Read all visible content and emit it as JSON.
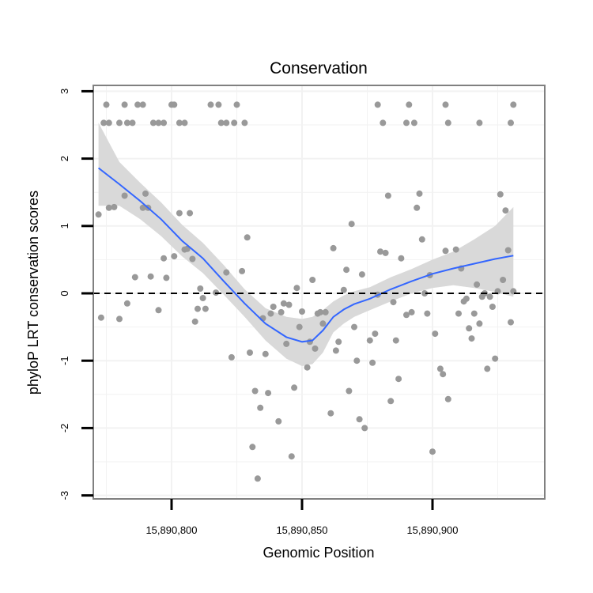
{
  "chart_data": {
    "type": "scatter",
    "title": "Conservation",
    "xlabel": "Genomic Position",
    "ylabel": "phyloP LRT conservation scores",
    "xlim": [
      15890770,
      15890940
    ],
    "ylim": [
      -3.05,
      3.1
    ],
    "x_ticks": [
      {
        "value": 15890800,
        "label": "15,890,800"
      },
      {
        "value": 15890850,
        "label": "15,890,850"
      },
      {
        "value": 15890900,
        "label": "15,890,900"
      }
    ],
    "y_ticks": [
      {
        "value": 3,
        "label": "3"
      },
      {
        "value": 2,
        "label": "2"
      },
      {
        "value": 1,
        "label": "1"
      },
      {
        "value": 0,
        "label": "0"
      },
      {
        "value": -1,
        "label": "-1"
      },
      {
        "value": -2,
        "label": "-2"
      },
      {
        "value": -3,
        "label": "-3"
      }
    ],
    "reference_line": {
      "y": 0,
      "style": "dashed",
      "color": "#000000"
    },
    "grid": true,
    "colors": {
      "points": "#999999",
      "smooth_line": "#3366ff",
      "ribbon": "#d9d9d9",
      "panel_border": "#808080",
      "grid": "#f2f2f2"
    },
    "points": [
      [
        15890775,
        2.8
      ],
      [
        15890774,
        2.53
      ],
      [
        15890776,
        2.53
      ],
      [
        15890780,
        2.53
      ],
      [
        15890783,
        2.53
      ],
      [
        15890785,
        2.53
      ],
      [
        15890782,
        2.8
      ],
      [
        15890787,
        2.8
      ],
      [
        15890789,
        2.8
      ],
      [
        15890793,
        2.53
      ],
      [
        15890795,
        2.53
      ],
      [
        15890797,
        2.53
      ],
      [
        15890800,
        2.8
      ],
      [
        15890801,
        2.8
      ],
      [
        15890803,
        2.53
      ],
      [
        15890805,
        2.53
      ],
      [
        15890815,
        2.8
      ],
      [
        15890818,
        2.8
      ],
      [
        15890819,
        2.53
      ],
      [
        15890821,
        2.53
      ],
      [
        15890825,
        2.8
      ],
      [
        15890824,
        2.53
      ],
      [
        15890828,
        2.53
      ],
      [
        15890879,
        2.8
      ],
      [
        15890881,
        2.53
      ],
      [
        15890890,
        2.53
      ],
      [
        15890891,
        2.8
      ],
      [
        15890893,
        2.53
      ],
      [
        15890905,
        2.8
      ],
      [
        15890906,
        2.53
      ],
      [
        15890918,
        2.53
      ],
      [
        15890930,
        2.53
      ],
      [
        15890931,
        2.8
      ],
      [
        15890772,
        1.17
      ],
      [
        15890773,
        -0.36
      ],
      [
        15890776,
        1.27
      ],
      [
        15890778,
        1.28
      ],
      [
        15890780,
        -0.38
      ],
      [
        15890782,
        1.45
      ],
      [
        15890783,
        -0.15
      ],
      [
        15890786,
        0.24
      ],
      [
        15890789,
        1.27
      ],
      [
        15890790,
        1.48
      ],
      [
        15890791,
        1.27
      ],
      [
        15890792,
        0.25
      ],
      [
        15890795,
        -0.25
      ],
      [
        15890797,
        0.52
      ],
      [
        15890798,
        0.23
      ],
      [
        15890801,
        0.55
      ],
      [
        15890803,
        1.19
      ],
      [
        15890805,
        0.65
      ],
      [
        15890806,
        0.66
      ],
      [
        15890807,
        1.19
      ],
      [
        15890808,
        0.51
      ],
      [
        15890809,
        -0.42
      ],
      [
        15890810,
        -0.23
      ],
      [
        15890811,
        0.07
      ],
      [
        15890812,
        -0.07
      ],
      [
        15890813,
        -0.23
      ],
      [
        15890817,
        0.01
      ],
      [
        15890821,
        0.31
      ],
      [
        15890823,
        -0.95
      ],
      [
        15890827,
        0.33
      ],
      [
        15890829,
        0.83
      ],
      [
        15890830,
        -0.88
      ],
      [
        15890831,
        -2.28
      ],
      [
        15890832,
        -1.45
      ],
      [
        15890833,
        -2.75
      ],
      [
        15890834,
        -1.7
      ],
      [
        15890835,
        -0.37
      ],
      [
        15890836,
        -0.9
      ],
      [
        15890837,
        -1.48
      ],
      [
        15890838,
        -0.3
      ],
      [
        15890839,
        -0.2
      ],
      [
        15890841,
        -1.9
      ],
      [
        15890842,
        -0.28
      ],
      [
        15890843,
        -0.15
      ],
      [
        15890844,
        -0.75
      ],
      [
        15890845,
        -0.17
      ],
      [
        15890846,
        -2.42
      ],
      [
        15890847,
        -1.4
      ],
      [
        15890848,
        0.08
      ],
      [
        15890849,
        -0.5
      ],
      [
        15890850,
        -0.27
      ],
      [
        15890852,
        -1.1
      ],
      [
        15890853,
        -0.72
      ],
      [
        15890854,
        0.2
      ],
      [
        15890855,
        -0.82
      ],
      [
        15890856,
        -0.3
      ],
      [
        15890857,
        -0.28
      ],
      [
        15890858,
        -0.45
      ],
      [
        15890859,
        -0.28
      ],
      [
        15890861,
        -1.78
      ],
      [
        15890862,
        0.67
      ],
      [
        15890863,
        -0.85
      ],
      [
        15890864,
        -0.72
      ],
      [
        15890866,
        0.05
      ],
      [
        15890867,
        0.35
      ],
      [
        15890868,
        -1.45
      ],
      [
        15890869,
        1.03
      ],
      [
        15890870,
        -0.5
      ],
      [
        15890871,
        -1.0
      ],
      [
        15890872,
        -1.87
      ],
      [
        15890873,
        0.28
      ],
      [
        15890874,
        -2.0
      ],
      [
        15890876,
        -0.7
      ],
      [
        15890877,
        -1.03
      ],
      [
        15890878,
        -0.6
      ],
      [
        15890879,
        -0.02
      ],
      [
        15890880,
        0.62
      ],
      [
        15890882,
        0.6
      ],
      [
        15890883,
        1.45
      ],
      [
        15890884,
        -1.6
      ],
      [
        15890885,
        -0.13
      ],
      [
        15890886,
        -0.7
      ],
      [
        15890887,
        -1.27
      ],
      [
        15890888,
        0.52
      ],
      [
        15890890,
        -0.32
      ],
      [
        15890892,
        -0.28
      ],
      [
        15890894,
        1.27
      ],
      [
        15890895,
        1.48
      ],
      [
        15890896,
        0.8
      ],
      [
        15890897,
        0.0
      ],
      [
        15890898,
        -0.3
      ],
      [
        15890899,
        0.27
      ],
      [
        15890900,
        -2.35
      ],
      [
        15890901,
        -0.6
      ],
      [
        15890903,
        -1.12
      ],
      [
        15890904,
        -1.2
      ],
      [
        15890905,
        0.63
      ],
      [
        15890906,
        -1.57
      ],
      [
        15890909,
        0.65
      ],
      [
        15890910,
        -0.3
      ],
      [
        15890911,
        0.37
      ],
      [
        15890912,
        -0.12
      ],
      [
        15890913,
        -0.08
      ],
      [
        15890914,
        -0.52
      ],
      [
        15890915,
        -0.67
      ],
      [
        15890916,
        -0.3
      ],
      [
        15890917,
        0.13
      ],
      [
        15890918,
        -0.45
      ],
      [
        15890919,
        -0.05
      ],
      [
        15890920,
        0.0
      ],
      [
        15890921,
        -1.12
      ],
      [
        15890922,
        -0.05
      ],
      [
        15890923,
        -0.2
      ],
      [
        15890924,
        -0.97
      ],
      [
        15890925,
        0.03
      ],
      [
        15890926,
        1.47
      ],
      [
        15890927,
        0.2
      ],
      [
        15890928,
        1.23
      ],
      [
        15890929,
        0.64
      ],
      [
        15890930,
        -0.43
      ],
      [
        15890931,
        0.03
      ]
    ],
    "smooth": {
      "x": [
        15890772,
        15890780,
        15890788,
        15890796,
        15890804,
        15890812,
        15890820,
        15890828,
        15890836,
        15890844,
        15890850,
        15890854,
        15890858,
        15890862,
        15890866,
        15890870,
        15890876,
        15890884,
        15890892,
        15890900,
        15890908,
        15890916,
        15890924,
        15890931
      ],
      "y": [
        1.86,
        1.62,
        1.37,
        1.1,
        0.78,
        0.52,
        0.18,
        -0.15,
        -0.45,
        -0.65,
        -0.72,
        -0.7,
        -0.55,
        -0.35,
        -0.24,
        -0.16,
        -0.08,
        0.06,
        0.18,
        0.29,
        0.37,
        0.44,
        0.51,
        0.56
      ],
      "lower": [
        1.3,
        1.3,
        1.1,
        0.85,
        0.55,
        0.3,
        -0.02,
        -0.35,
        -0.7,
        -0.97,
        -1.08,
        -1.05,
        -0.88,
        -0.58,
        -0.45,
        -0.35,
        -0.25,
        -0.12,
        0.0,
        0.08,
        0.12,
        0.08,
        0.02,
        -0.05
      ],
      "upper": [
        2.53,
        1.95,
        1.64,
        1.35,
        1.02,
        0.75,
        0.42,
        0.06,
        -0.22,
        -0.35,
        -0.38,
        -0.35,
        -0.25,
        -0.12,
        -0.03,
        0.03,
        0.09,
        0.24,
        0.36,
        0.5,
        0.62,
        0.8,
        1.0,
        1.28
      ]
    }
  }
}
